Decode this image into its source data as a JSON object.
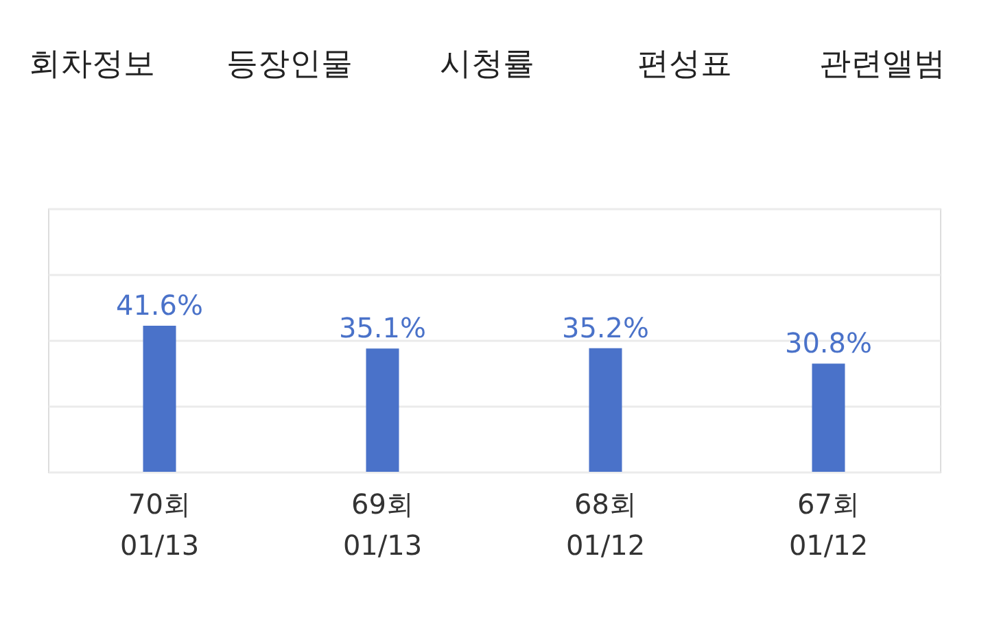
{
  "chart_data": {
    "type": "bar",
    "categories": [
      "70회\n01/13",
      "69회\n01/13",
      "68회\n01/12",
      "67회\n01/12"
    ],
    "values": [
      41.6,
      35.1,
      35.2,
      30.8
    ],
    "color": "#4a72c9",
    "value_labels": [
      "41.6%",
      "35.1%",
      "35.2%",
      "30.8%"
    ],
    "ylim": [
      0,
      75
    ],
    "yticks": [
      {
        "value": 0,
        "label": null
      },
      {
        "value": 18.75,
        "label": null
      },
      {
        "value": 37.5,
        "label": null
      },
      {
        "value": 56.25,
        "label": null
      },
      {
        "value": 75,
        "label": null
      }
    ],
    "grid": "y",
    "annotations": [
      "회차정보",
      "등장인물",
      "시청률",
      "편성표",
      "관련앨범"
    ]
  }
}
